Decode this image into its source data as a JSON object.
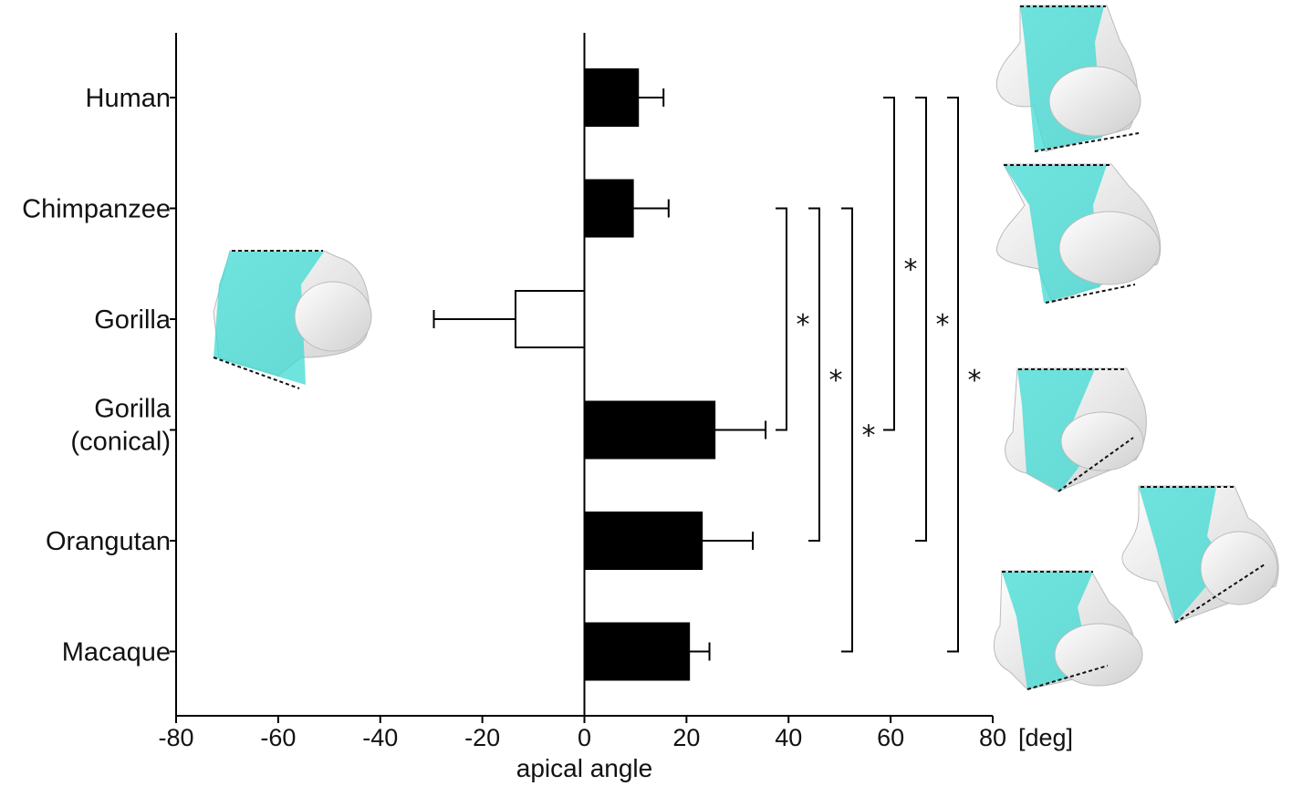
{
  "chart_data": {
    "type": "bar",
    "orientation": "horizontal",
    "categories": [
      "Human",
      "Chimpanzee",
      "Gorilla",
      "Gorilla\n(conical)",
      "Orangutan",
      "Macaque"
    ],
    "values": [
      10.5,
      9.5,
      -13.5,
      25.5,
      23,
      20.5
    ],
    "errors": [
      5,
      7,
      16,
      10,
      10,
      4
    ],
    "bar_fills": [
      "#000000",
      "#000000",
      "#ffffff",
      "#000000",
      "#000000",
      "#000000"
    ],
    "xlabel": "apical angle",
    "xunit": "[deg]",
    "xlim": [
      -80,
      80
    ],
    "xticks": [
      -80,
      -60,
      -40,
      -20,
      0,
      20,
      40,
      60,
      80
    ],
    "grid": false,
    "significance": [
      {
        "from": "Chimpanzee",
        "to": "Gorilla\n(conical)",
        "label": "*"
      },
      {
        "from": "Chimpanzee",
        "to": "Orangutan",
        "label": "*"
      },
      {
        "from": "Chimpanzee",
        "to": "Macaque",
        "label": "*"
      },
      {
        "from": "Human",
        "to": "Gorilla\n(conical)",
        "label": "*"
      },
      {
        "from": "Human",
        "to": "Orangutan",
        "label": "*"
      },
      {
        "from": "Human",
        "to": "Macaque",
        "label": "*"
      }
    ],
    "colors": {
      "bone": "#eeeeee",
      "highlight": "#3fd9d2",
      "bar": "#000000"
    },
    "illustrations": [
      "talus-3d-render-gorilla",
      "talus-3d-render-human",
      "talus-3d-render-chimpanzee",
      "talus-3d-render-gorilla-conical",
      "talus-3d-render-orangutan",
      "talus-3d-render-macaque"
    ]
  }
}
